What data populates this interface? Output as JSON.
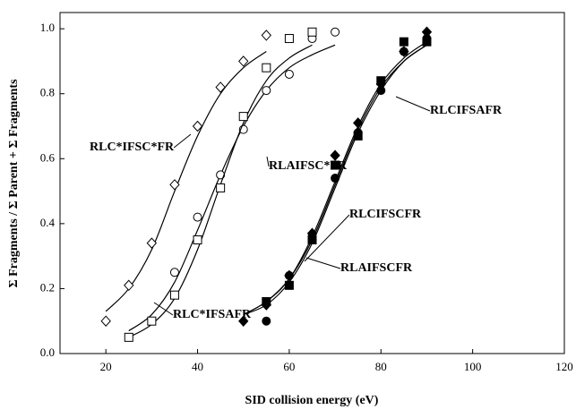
{
  "chart_data": {
    "type": "scatter",
    "x_label": "SID collision energy (eV)",
    "y_label": "Σ Fragments / Σ Parent + Σ Fragments",
    "xlim": [
      10,
      120
    ],
    "ylim": [
      0,
      1.05
    ],
    "xticks": [
      20,
      40,
      60,
      80,
      100,
      120
    ],
    "yticks": [
      {
        "value": 0,
        "label": "0.0"
      },
      {
        "value": 0.2,
        "label": "0.2"
      },
      {
        "value": 0.4,
        "label": "0.4"
      },
      {
        "value": 0.6,
        "label": "0.6"
      },
      {
        "value": 0.8,
        "label": "0.8"
      },
      {
        "value": 1,
        "label": "1.0"
      }
    ],
    "series": [
      {
        "name": "RLC*IFSC*FR",
        "color": "#000000",
        "marker": "diamond",
        "filled": false,
        "x": [
          20,
          25,
          30,
          35,
          40,
          45,
          50,
          55
        ],
        "values": [
          0.1,
          0.21,
          0.34,
          0.52,
          0.7,
          0.82,
          0.9,
          0.98
        ],
        "fit_x": [
          20,
          25,
          30,
          35,
          40,
          45,
          50,
          55
        ],
        "fit_y": [
          0.13,
          0.2,
          0.32,
          0.5,
          0.67,
          0.8,
          0.88,
          0.93
        ]
      },
      {
        "name": "RLAIFSC*FR",
        "color": "#000000",
        "marker": "circle",
        "filled": false,
        "x": [
          35,
          40,
          45,
          50,
          55,
          60,
          65,
          70
        ],
        "values": [
          0.25,
          0.42,
          0.55,
          0.69,
          0.81,
          0.86,
          0.97,
          0.99
        ],
        "fit_x": [
          25,
          30,
          35,
          40,
          45,
          50,
          55,
          60,
          65,
          70
        ],
        "fit_y": [
          0.07,
          0.12,
          0.22,
          0.38,
          0.55,
          0.7,
          0.81,
          0.88,
          0.92,
          0.95
        ]
      },
      {
        "name": "RLC*IFSAFR",
        "color": "#000000",
        "marker": "square",
        "filled": false,
        "x": [
          25,
          30,
          35,
          40,
          45,
          50,
          55,
          60,
          65
        ],
        "values": [
          0.05,
          0.1,
          0.18,
          0.35,
          0.51,
          0.73,
          0.88,
          0.97,
          0.99
        ],
        "fit_x": [
          25,
          30,
          35,
          40,
          45,
          50,
          55,
          60,
          65
        ],
        "fit_y": [
          0.05,
          0.09,
          0.17,
          0.32,
          0.52,
          0.71,
          0.84,
          0.91,
          0.95
        ]
      },
      {
        "name": "RLCIFSAFR",
        "color": "#000000",
        "marker": "diamond",
        "filled": true,
        "x": [
          50,
          55,
          60,
          65,
          70,
          75,
          80,
          85,
          90
        ],
        "values": [
          0.1,
          0.15,
          0.24,
          0.37,
          0.61,
          0.71,
          0.83,
          0.93,
          0.99
        ],
        "fit_x": [
          50,
          55,
          60,
          65,
          70,
          75,
          80,
          85,
          90
        ],
        "fit_y": [
          0.12,
          0.16,
          0.23,
          0.36,
          0.53,
          0.7,
          0.83,
          0.91,
          0.96
        ]
      },
      {
        "name": "RLCIFSCFR",
        "color": "#000000",
        "marker": "circle",
        "filled": true,
        "x": [
          55,
          60,
          65,
          70,
          75,
          80,
          85,
          90
        ],
        "values": [
          0.1,
          0.24,
          0.36,
          0.54,
          0.68,
          0.81,
          0.93,
          0.97
        ],
        "fit_x": [
          50,
          55,
          60,
          65,
          70,
          75,
          80,
          85,
          90
        ],
        "fit_y": [
          0.12,
          0.16,
          0.23,
          0.35,
          0.52,
          0.69,
          0.82,
          0.9,
          0.95
        ]
      },
      {
        "name": "RLAIFSCFR",
        "color": "#000000",
        "marker": "square",
        "filled": true,
        "x": [
          55,
          60,
          65,
          70,
          75,
          80,
          85,
          90
        ],
        "values": [
          0.16,
          0.21,
          0.35,
          0.58,
          0.67,
          0.84,
          0.96,
          0.96
        ],
        "fit_x": [
          50,
          55,
          60,
          65,
          70,
          75,
          80,
          85,
          90
        ],
        "fit_y": [
          0.12,
          0.15,
          0.22,
          0.34,
          0.51,
          0.68,
          0.81,
          0.9,
          0.95
        ]
      }
    ]
  }
}
